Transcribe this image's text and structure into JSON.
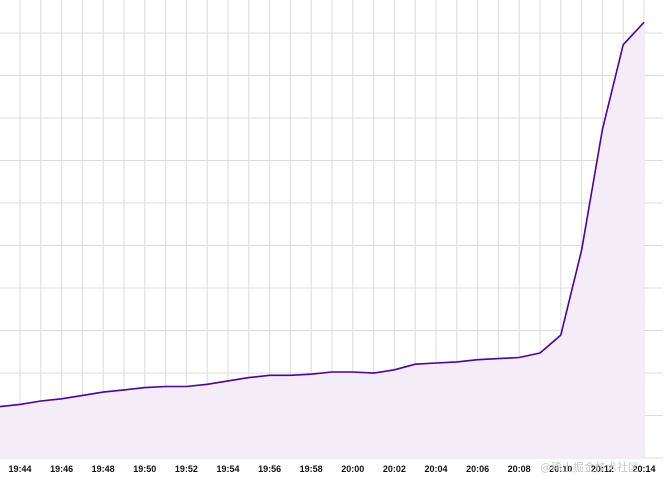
{
  "chart_data": {
    "type": "area",
    "title": "",
    "xlabel": "",
    "ylabel": "",
    "x_tick_labels": [
      "19:44",
      "19:46",
      "19:48",
      "19:50",
      "19:52",
      "19:54",
      "19:56",
      "19:58",
      "20:00",
      "20:02",
      "20:04",
      "20:06",
      "20:08",
      "20:10",
      "20:12",
      "20:14"
    ],
    "x": [
      "19:43",
      "19:44",
      "19:45",
      "19:46",
      "19:47",
      "19:48",
      "19:49",
      "19:50",
      "19:51",
      "19:52",
      "19:53",
      "19:54",
      "19:55",
      "19:56",
      "19:57",
      "19:58",
      "19:59",
      "20:00",
      "20:01",
      "20:02",
      "20:03",
      "20:04",
      "20:05",
      "20:06",
      "20:07",
      "20:08",
      "20:09",
      "20:10",
      "20:11",
      "20:12",
      "20:13",
      "20:14"
    ],
    "values": [
      2.3,
      2.4,
      2.55,
      2.65,
      2.8,
      2.95,
      3.05,
      3.15,
      3.2,
      3.2,
      3.3,
      3.45,
      3.6,
      3.7,
      3.7,
      3.75,
      3.85,
      3.85,
      3.8,
      3.95,
      4.2,
      4.25,
      4.3,
      4.4,
      4.45,
      4.5,
      4.7,
      5.5,
      9.3,
      14.7,
      18.5,
      19.5
    ],
    "ylim": [
      0,
      20.5
    ],
    "grid": true,
    "legend": "none",
    "line_color": "#4b00a8",
    "fill_color": "#f4edf7",
    "grid_color": "#dcdcdc"
  },
  "watermark": "@稀土掘金技术社区"
}
